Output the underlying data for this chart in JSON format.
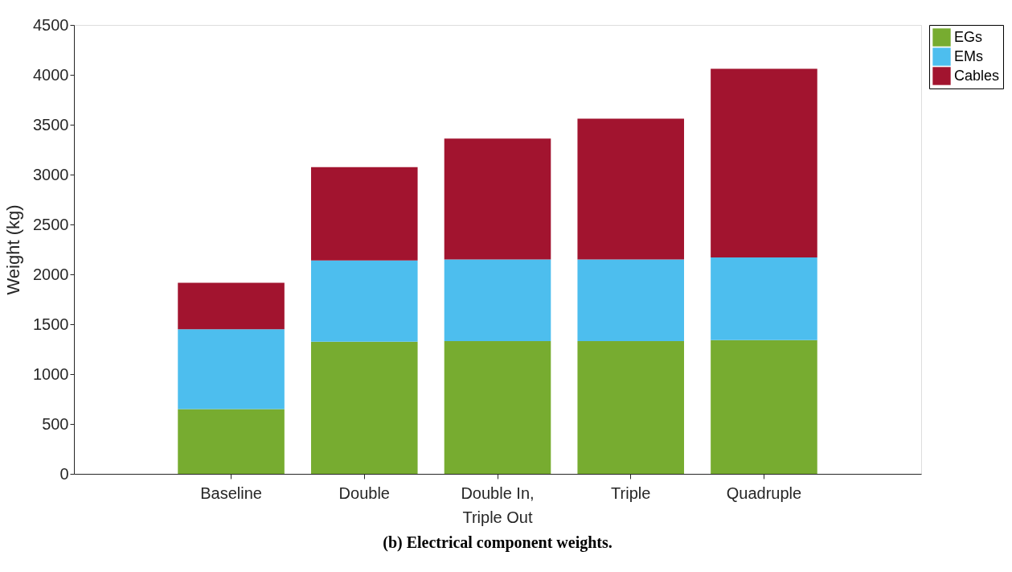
{
  "chart_data": {
    "type": "bar",
    "stacked": true,
    "title": "(b) Electrical component weights.",
    "ylabel": "Weight (kg)",
    "categories": [
      "Baseline",
      "Double",
      "Double In, Triple Out",
      "Triple",
      "Quadruple"
    ],
    "series": [
      {
        "name": "EGs",
        "color": "#77ac30",
        "values": [
          650,
          1325,
          1330,
          1330,
          1340
        ]
      },
      {
        "name": "EMs",
        "color": "#4dbeee",
        "values": [
          800,
          815,
          820,
          820,
          830
        ]
      },
      {
        "name": "Cables",
        "color": "#a2142f",
        "values": [
          465,
          935,
          1210,
          1410,
          1890
        ]
      }
    ],
    "ylim": [
      0,
      4500
    ],
    "yticks": [
      0,
      500,
      1000,
      1500,
      2000,
      2500,
      3000,
      3500,
      4000,
      4500
    ],
    "grid": false,
    "legend": "right"
  }
}
